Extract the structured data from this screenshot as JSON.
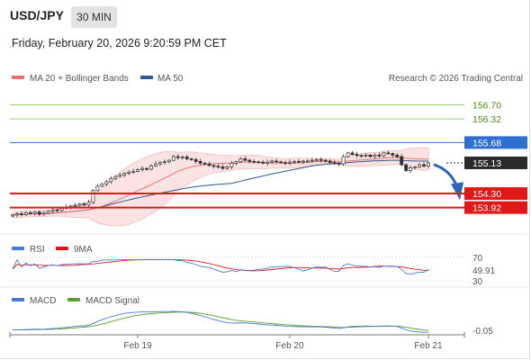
{
  "header": {
    "symbol": "USD/JPY",
    "timeframe": "30 MIN",
    "datetime": "Friday, February 20, 2026 9:20:59 PM CET"
  },
  "legend": {
    "ma20_label": "MA 20 + Bollinger Bands",
    "ma50_label": "MA 50",
    "copyright": "Research © 2026 Trading Central"
  },
  "colors": {
    "ma20": "#f07070",
    "ma50": "#2d5a8e",
    "bollinger_fill": "#fbe3e3",
    "resistance": "#7cba3c",
    "pivot": "#2f6fd0",
    "support": "#e01818",
    "last_price": "#2a2a2a",
    "candle": "#333333",
    "rsi": "#4a78d8",
    "rsi_ma": "#e01818",
    "macd": "#4a78d8",
    "macd_signal": "#5aa02a",
    "forecast_arrow": "#2e64b8"
  },
  "chart_data": [
    {
      "type": "candlestick",
      "title": "USD/JPY",
      "ylim": [
        153.4,
        157.2
      ],
      "levels": [
        {
          "value": 156.7,
          "label": "156.70",
          "kind": "resistance"
        },
        {
          "value": 156.32,
          "label": "156.32",
          "kind": "resistance"
        },
        {
          "value": 155.68,
          "label": "155.68",
          "kind": "pivot"
        },
        {
          "value": 155.13,
          "label": "155.13",
          "kind": "last"
        },
        {
          "value": 154.3,
          "label": "154.30",
          "kind": "support"
        },
        {
          "value": 153.92,
          "label": "153.92",
          "kind": "support"
        }
      ],
      "close": [
        153.72,
        153.75,
        153.73,
        153.78,
        153.76,
        153.8,
        153.74,
        153.77,
        153.82,
        153.86,
        153.84,
        153.9,
        153.93,
        153.96,
        153.98,
        154.02,
        153.99,
        154.06,
        154.38,
        154.5,
        154.56,
        154.62,
        154.7,
        154.76,
        154.8,
        154.85,
        154.88,
        154.9,
        154.95,
        154.98,
        154.96,
        155.05,
        155.1,
        155.14,
        155.16,
        155.2,
        155.3,
        155.27,
        155.29,
        155.24,
        155.22,
        155.17,
        155.12,
        155.1,
        155.06,
        155.04,
        155.02,
        154.98,
        155.02,
        155.12,
        155.16,
        155.24,
        155.2,
        155.17,
        155.16,
        155.15,
        155.12,
        155.15,
        155.18,
        155.16,
        155.14,
        155.12,
        155.15,
        155.17,
        155.16,
        155.18,
        155.18,
        155.2,
        155.22,
        155.2,
        155.18,
        155.14,
        155.12,
        155.1,
        155.3,
        155.4,
        155.36,
        155.33,
        155.32,
        155.34,
        155.3,
        155.34,
        155.32,
        155.4,
        155.38,
        155.34,
        155.3,
        155.08,
        154.92,
        155.0,
        155.02,
        155.08,
        155.04,
        155.13
      ]
    },
    {
      "type": "line",
      "title": "RSI",
      "ylim": [
        30,
        70
      ],
      "levels": [
        {
          "value": 70,
          "label": "70"
        },
        {
          "value": 30,
          "label": "30"
        }
      ],
      "series": [
        {
          "name": "RSI",
          "last": 49.91,
          "last_label": "49.91"
        },
        {
          "name": "9MA"
        }
      ]
    },
    {
      "type": "line",
      "title": "MACD",
      "series": [
        {
          "name": "MACD",
          "last": -0.05,
          "last_label": "-0.05"
        },
        {
          "name": "MACD Signal"
        }
      ],
      "x_ticks": [
        "Feb 19",
        "Feb 20",
        "Feb 21"
      ]
    }
  ],
  "rsi_panel": {
    "rsi_label": "RSI",
    "ma_label": "9MA"
  },
  "macd_panel": {
    "macd_label": "MACD",
    "signal_label": "MACD Signal"
  }
}
